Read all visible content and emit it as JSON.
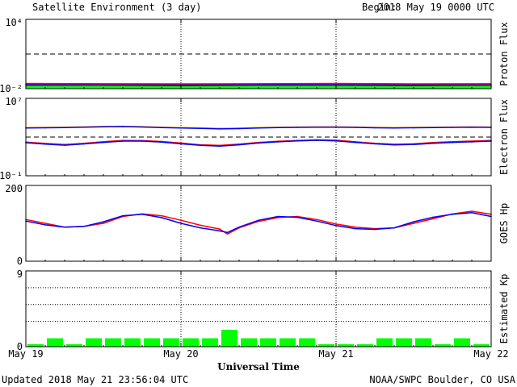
{
  "header": {
    "title": "Satellite Environment (3 day)",
    "begin_label": "Begin:",
    "begin_value": "2018 May 19 0000 UTC"
  },
  "footer": {
    "updated": "Updated 2018 May 21 23:56:04 UTC",
    "source": "NOAA/SWPC Boulder, CO USA",
    "x_axis_label": "Universal Time"
  },
  "x_ticks": [
    "May 19",
    "May 20",
    "May 21",
    "May 22"
  ],
  "colors": {
    "red": "#ff0000",
    "blue": "#0000ff",
    "green": "#00ff00",
    "orange": "#ffa500",
    "kp_bar": "#00ff00"
  },
  "chart_data": [
    {
      "type": "line",
      "name": "proton-flux",
      "ylabel": "Proton Flux",
      "yscale": "log",
      "ylim": [
        0.01,
        10000
      ],
      "ytick_labels": [
        "10⁴",
        "10⁻²"
      ],
      "threshold": 10,
      "x_days": [
        0,
        0.5,
        1,
        1.5,
        2,
        2.5,
        3
      ],
      "series": [
        {
          "color": "red",
          "values": [
            0.025,
            0.024,
            0.023,
            0.024,
            0.025,
            0.023,
            0.024
          ]
        },
        {
          "color": "blue",
          "values": [
            0.019,
            0.018,
            0.018,
            0.019,
            0.019,
            0.018,
            0.018
          ]
        },
        {
          "color": "green",
          "values": [
            0.014,
            0.014,
            0.013,
            0.014,
            0.014,
            0.013,
            0.014
          ]
        }
      ]
    },
    {
      "type": "line",
      "name": "electron-flux",
      "ylabel": "Electron Flux",
      "yscale": "log",
      "ylim": [
        0.1,
        10000000
      ],
      "ytick_labels": [
        "10⁷",
        "10⁻¹"
      ],
      "threshold": 1000,
      "x_days": [
        0,
        0.125,
        0.25,
        0.375,
        0.5,
        0.625,
        0.75,
        0.875,
        1,
        1.125,
        1.25,
        1.375,
        1.5,
        1.625,
        1.75,
        1.875,
        2,
        2.125,
        2.25,
        2.375,
        2.5,
        2.625,
        2.75,
        2.875,
        3
      ],
      "series": [
        {
          "color": "orange",
          "values": [
            9500,
            10000,
            10500,
            11500,
            12500,
            13000,
            12000,
            10500,
            9500,
            9000,
            8000,
            8500,
            9500,
            10500,
            11000,
            11500,
            11500,
            11000,
            10000,
            9500,
            10000,
            10500,
            11000,
            11500,
            11000
          ]
        },
        {
          "color": "blue",
          "values": [
            8500,
            9000,
            9500,
            10500,
            11500,
            12000,
            11000,
            9500,
            8500,
            8000,
            7000,
            7500,
            8500,
            9500,
            10000,
            10500,
            10500,
            10000,
            9000,
            8500,
            9000,
            9500,
            10000,
            10500,
            10000
          ]
        },
        {
          "color": "red",
          "values": [
            300,
            220,
            170,
            230,
            330,
            450,
            430,
            350,
            240,
            160,
            135,
            190,
            280,
            370,
            450,
            520,
            470,
            320,
            230,
            180,
            200,
            270,
            330,
            380,
            440
          ]
        },
        {
          "color": "blue",
          "values": [
            260,
            190,
            145,
            195,
            280,
            380,
            380,
            300,
            200,
            140,
            115,
            160,
            240,
            320,
            400,
            460,
            400,
            280,
            200,
            155,
            170,
            230,
            280,
            320,
            380
          ]
        }
      ]
    },
    {
      "type": "line",
      "name": "goes-hp",
      "ylabel": "GOES Hp",
      "yscale": "linear",
      "ylim": [
        0,
        200
      ],
      "ytick_labels": [
        "200",
        "0"
      ],
      "x_days": [
        0,
        0.125,
        0.25,
        0.375,
        0.5,
        0.625,
        0.75,
        0.875,
        1,
        1.125,
        1.25,
        1.3,
        1.375,
        1.5,
        1.625,
        1.75,
        1.875,
        2,
        2.125,
        2.25,
        2.375,
        2.5,
        2.625,
        2.75,
        2.875,
        3
      ],
      "series": [
        {
          "color": "red",
          "values": [
            110,
            100,
            90,
            92,
            100,
            118,
            125,
            120,
            108,
            95,
            85,
            72,
            88,
            105,
            115,
            118,
            110,
            98,
            90,
            86,
            88,
            100,
            112,
            125,
            132,
            124
          ]
        },
        {
          "color": "blue",
          "values": [
            106,
            96,
            90,
            92,
            104,
            120,
            124,
            115,
            100,
            88,
            80,
            76,
            90,
            108,
            118,
            116,
            106,
            94,
            86,
            84,
            88,
            104,
            116,
            124,
            128,
            118
          ]
        }
      ]
    },
    {
      "type": "bar",
      "name": "estimated-kp",
      "ylabel": "Estimated Kp",
      "ylim": [
        0,
        9
      ],
      "ytick_labels": [
        "9",
        "0"
      ],
      "categories_every_hours": 3,
      "values": [
        0.3,
        1,
        0.3,
        1,
        1,
        1,
        1,
        1,
        1,
        1,
        2,
        1,
        1,
        1,
        1,
        0.3,
        0.3,
        0.3,
        1,
        1,
        1,
        0.3,
        1,
        0.3
      ]
    }
  ]
}
